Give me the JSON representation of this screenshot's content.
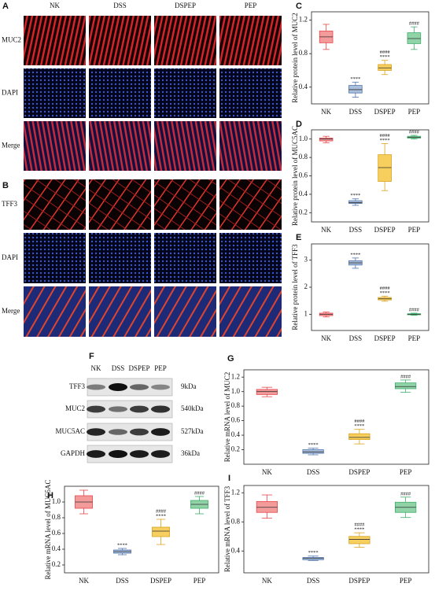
{
  "micrographs": [
    {
      "label": "A",
      "columns": [
        "NK",
        "DSS",
        "DSPEP",
        "PEP"
      ],
      "rows": [
        "MUC2",
        "DAPI",
        "Merge"
      ]
    },
    {
      "label": "B",
      "rows": [
        "TFF3",
        "DAPI",
        "Merge"
      ]
    }
  ],
  "blot": {
    "label": "F",
    "columns": [
      "NK",
      "DSS",
      "DSPEP",
      "PEP"
    ],
    "rows": [
      {
        "name": "TFF3",
        "size": "9kDa"
      },
      {
        "name": "MUC2",
        "size": "540kDa"
      },
      {
        "name": "MUC5AC",
        "size": "527kDa"
      },
      {
        "name": "GAPDH",
        "size": "36kDa"
      }
    ]
  },
  "chart_data": [
    {
      "type": "box",
      "panel": "C",
      "ylabel": "Relative protein level of MUC2",
      "categories": [
        "NK",
        "DSS",
        "DSPEP",
        "PEP"
      ],
      "ylim": [
        0.2,
        1.3
      ],
      "yticks": [
        0.4,
        0.8,
        1.2
      ],
      "boxes": [
        {
          "color": "#e8464a",
          "fill": "#f39a9a",
          "min": 0.85,
          "q1": 0.93,
          "median": 1.0,
          "q3": 1.07,
          "max": 1.15,
          "labels": []
        },
        {
          "color": "#4f74ad",
          "fill": "#a9bfdc",
          "min": 0.28,
          "q1": 0.33,
          "median": 0.37,
          "q3": 0.42,
          "max": 0.46,
          "labels": [
            "****"
          ]
        },
        {
          "color": "#d9a21e",
          "fill": "#f6cf5e",
          "min": 0.55,
          "q1": 0.6,
          "median": 0.63,
          "q3": 0.67,
          "max": 0.72,
          "labels": [
            "****",
            "####"
          ]
        },
        {
          "color": "#3fae6b",
          "fill": "#8fd3a7",
          "min": 0.85,
          "q1": 0.92,
          "median": 0.98,
          "q3": 1.05,
          "max": 1.12,
          "labels": [
            "####"
          ]
        }
      ]
    },
    {
      "type": "box",
      "panel": "D",
      "ylabel": "Relative protein level of MUC5AC",
      "categories": [
        "NK",
        "DSS",
        "DSPEP",
        "PEP"
      ],
      "ylim": [
        0.1,
        1.1
      ],
      "yticks": [
        0.2,
        0.4,
        0.6,
        0.8,
        {
          "value": 1,
          "label": "1.0"
        }
      ],
      "boxes": [
        {
          "color": "#e8464a",
          "fill": "#f39a9a",
          "min": 0.96,
          "q1": 0.98,
          "median": 1.0,
          "q3": 1.01,
          "max": 1.03,
          "labels": []
        },
        {
          "color": "#4f74ad",
          "fill": "#a9bfdc",
          "min": 0.28,
          "q1": 0.3,
          "median": 0.31,
          "q3": 0.33,
          "max": 0.35,
          "labels": [
            "****"
          ]
        },
        {
          "color": "#d9a21e",
          "fill": "#f6cf5e",
          "min": 0.44,
          "q1": 0.54,
          "median": 0.69,
          "q3": 0.83,
          "max": 0.95,
          "labels": [
            "****",
            "####"
          ]
        },
        {
          "color": "#3fae6b",
          "fill": "#8fd3a7",
          "min": 1.0,
          "q1": 1.01,
          "median": 1.02,
          "q3": 1.03,
          "max": 1.04,
          "labels": [
            "####"
          ]
        }
      ]
    },
    {
      "type": "box",
      "panel": "E",
      "ylabel": "Relative protein level of TFF3",
      "categories": [
        "NK",
        "DSS",
        "DSPEP",
        "PEP"
      ],
      "ylim": [
        0.4,
        3.6
      ],
      "yticks": [
        1,
        2,
        3
      ],
      "boxes": [
        {
          "color": "#e8464a",
          "fill": "#f39a9a",
          "min": 0.9,
          "q1": 0.95,
          "median": 1.0,
          "q3": 1.04,
          "max": 1.08,
          "labels": []
        },
        {
          "color": "#4f74ad",
          "fill": "#a9bfdc",
          "min": 2.7,
          "q1": 2.82,
          "median": 2.9,
          "q3": 2.98,
          "max": 3.08,
          "labels": [
            "****"
          ]
        },
        {
          "color": "#d9a21e",
          "fill": "#f6cf5e",
          "min": 1.48,
          "q1": 1.53,
          "median": 1.57,
          "q3": 1.62,
          "max": 1.67,
          "labels": [
            "****",
            "####"
          ]
        },
        {
          "color": "#3fae6b",
          "fill": "#8fd3a7",
          "min": 0.96,
          "q1": 0.98,
          "median": 1.0,
          "q3": 1.02,
          "max": 1.04,
          "labels": [
            "####"
          ]
        }
      ]
    },
    {
      "type": "box",
      "panel": "G",
      "ylabel": "Relative mRNA level of MUC2",
      "categories": [
        "NK",
        "DSS",
        "DSPEP",
        "PEP"
      ],
      "ylim": [
        0,
        1.3
      ],
      "yticks": [
        0.2,
        0.4,
        0.6,
        0.8,
        {
          "value": 1,
          "label": "1.0"
        },
        1.2
      ],
      "boxes": [
        {
          "color": "#e8464a",
          "fill": "#f39a9a",
          "min": 0.93,
          "q1": 0.96,
          "median": 1.0,
          "q3": 1.03,
          "max": 1.06,
          "labels": []
        },
        {
          "color": "#4f74ad",
          "fill": "#a9bfdc",
          "min": 0.13,
          "q1": 0.15,
          "median": 0.17,
          "q3": 0.2,
          "max": 0.22,
          "labels": [
            "****"
          ]
        },
        {
          "color": "#d9a21e",
          "fill": "#f6cf5e",
          "min": 0.28,
          "q1": 0.34,
          "median": 0.37,
          "q3": 0.42,
          "max": 0.48,
          "labels": [
            "****",
            "####"
          ]
        },
        {
          "color": "#3fae6b",
          "fill": "#8fd3a7",
          "min": 0.99,
          "q1": 1.04,
          "median": 1.07,
          "q3": 1.12,
          "max": 1.16,
          "labels": [
            "####"
          ]
        }
      ]
    },
    {
      "type": "box",
      "panel": "H",
      "ylabel": "Relative mRNA level of MUC5AC",
      "categories": [
        "NK",
        "DSS",
        "DSPEP",
        "PEP"
      ],
      "ylim": [
        0.1,
        1.2
      ],
      "yticks": [
        0.2,
        0.4,
        0.6,
        0.8,
        {
          "value": 1,
          "label": "1.0"
        }
      ],
      "boxes": [
        {
          "color": "#e8464a",
          "fill": "#f39a9a",
          "min": 0.85,
          "q1": 0.92,
          "median": 1.0,
          "q3": 1.08,
          "max": 1.15,
          "labels": []
        },
        {
          "color": "#4f74ad",
          "fill": "#a9bfdc",
          "min": 0.33,
          "q1": 0.35,
          "median": 0.37,
          "q3": 0.39,
          "max": 0.41,
          "labels": [
            "****"
          ]
        },
        {
          "color": "#d9a21e",
          "fill": "#f6cf5e",
          "min": 0.46,
          "q1": 0.56,
          "median": 0.63,
          "q3": 0.68,
          "max": 0.78,
          "labels": [
            "****",
            "####"
          ]
        },
        {
          "color": "#3fae6b",
          "fill": "#8fd3a7",
          "min": 0.85,
          "q1": 0.92,
          "median": 0.97,
          "q3": 1.02,
          "max": 1.07,
          "labels": [
            "####"
          ]
        }
      ]
    },
    {
      "type": "box",
      "panel": "I",
      "ylabel": "Relative mRNA level of TFF3",
      "categories": [
        "NK",
        "DSS",
        "DSPEP",
        "PEP"
      ],
      "ylim": [
        0.1,
        1.3
      ],
      "yticks": [
        0.4,
        0.8,
        1.2
      ],
      "boxes": [
        {
          "color": "#e8464a",
          "fill": "#f39a9a",
          "min": 0.85,
          "q1": 0.93,
          "median": 1.0,
          "q3": 1.08,
          "max": 1.17,
          "labels": []
        },
        {
          "color": "#4f74ad",
          "fill": "#a9bfdc",
          "min": 0.27,
          "q1": 0.28,
          "median": 0.3,
          "q3": 0.31,
          "max": 0.33,
          "labels": [
            "****"
          ]
        },
        {
          "color": "#d9a21e",
          "fill": "#f6cf5e",
          "min": 0.45,
          "q1": 0.5,
          "median": 0.56,
          "q3": 0.6,
          "max": 0.65,
          "labels": [
            "****",
            "####"
          ]
        },
        {
          "color": "#3fae6b",
          "fill": "#8fd3a7",
          "min": 0.86,
          "q1": 0.93,
          "median": 1.0,
          "q3": 1.07,
          "max": 1.14,
          "labels": [
            "####"
          ]
        }
      ]
    }
  ]
}
